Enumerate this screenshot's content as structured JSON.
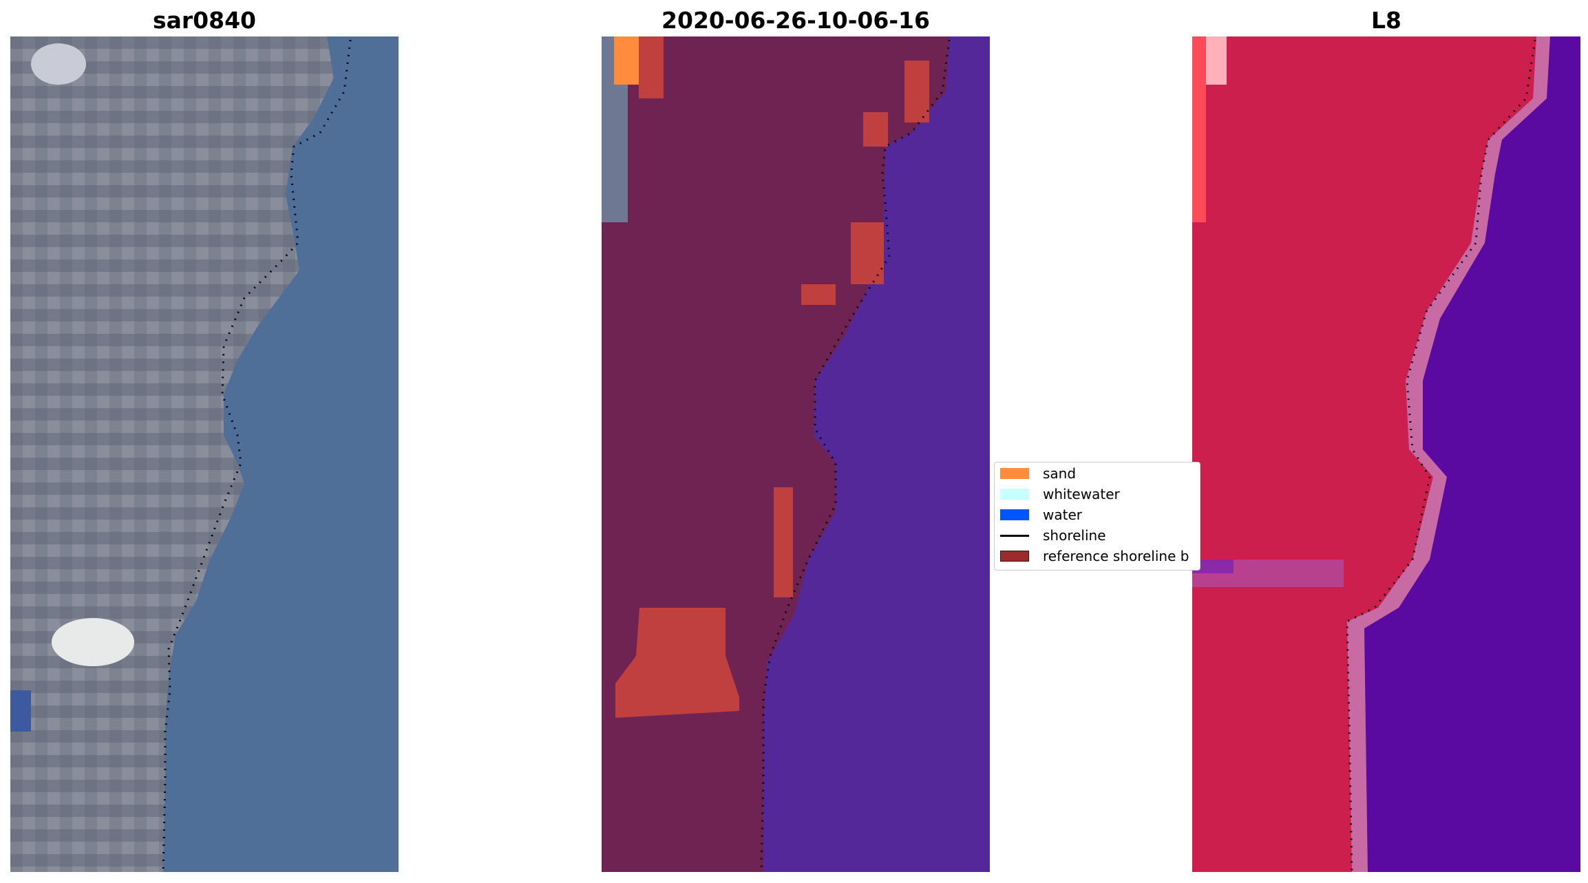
{
  "panels": [
    {
      "title": "sar0840",
      "kind": "rgb"
    },
    {
      "title": "2020-06-26-10-06-16",
      "kind": "classified"
    },
    {
      "title": "L8",
      "kind": "false-color"
    }
  ],
  "legend": {
    "items": [
      {
        "label": "sand",
        "color": "#ff8c3c",
        "type": "patch"
      },
      {
        "label": "whitewater",
        "color": "#c8ffff",
        "type": "patch"
      },
      {
        "label": "water",
        "color": "#0055ff",
        "type": "patch"
      },
      {
        "label": "shoreline",
        "color": "#000000",
        "type": "line"
      },
      {
        "label": "reference shoreline b",
        "color": "#9b2c2c",
        "type": "patch"
      }
    ]
  },
  "colors": {
    "rgb_land": "#7a7f8f",
    "rgb_water": "#4f6e98",
    "classified_land": "#6e2352",
    "classified_water": "#55289a",
    "classified_reference": "#c0403f",
    "classified_sand": "#ff8c3c",
    "false_land": "#cc1f4e",
    "false_water": "#5a0aa0"
  }
}
